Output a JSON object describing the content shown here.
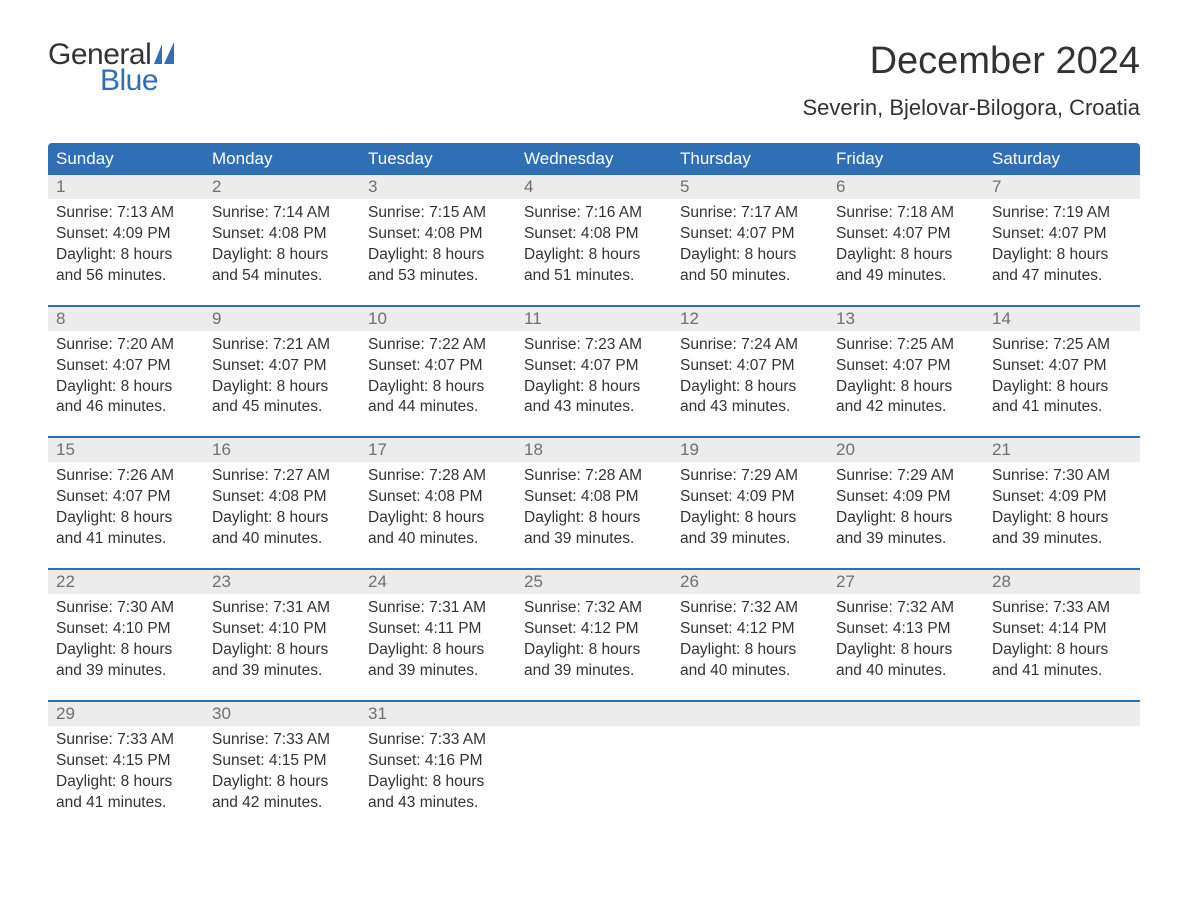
{
  "logo": {
    "text1": "General",
    "text2": "Blue",
    "text1_color": "#333333",
    "text2_color": "#2f6fb5",
    "sail_color": "#2f6fb5"
  },
  "title": "December 2024",
  "location": "Severin, Bjelovar-Bilogora, Croatia",
  "colors": {
    "header_bg": "#2f6fb5",
    "header_text": "#ffffff",
    "daynum_bg": "#ececec",
    "daynum_text": "#707070",
    "body_text": "#333333",
    "background": "#ffffff",
    "week_separator": "#2f6fb5"
  },
  "typography": {
    "title_fontsize": 38,
    "location_fontsize": 22,
    "weekday_fontsize": 17,
    "daynum_fontsize": 17,
    "details_fontsize": 15.5,
    "font_family": "Arial"
  },
  "weekdays": [
    "Sunday",
    "Monday",
    "Tuesday",
    "Wednesday",
    "Thursday",
    "Friday",
    "Saturday"
  ],
  "weeks": [
    [
      {
        "n": "1",
        "sr": "Sunrise: 7:13 AM",
        "ss": "Sunset: 4:09 PM",
        "d1": "Daylight: 8 hours",
        "d2": "and 56 minutes."
      },
      {
        "n": "2",
        "sr": "Sunrise: 7:14 AM",
        "ss": "Sunset: 4:08 PM",
        "d1": "Daylight: 8 hours",
        "d2": "and 54 minutes."
      },
      {
        "n": "3",
        "sr": "Sunrise: 7:15 AM",
        "ss": "Sunset: 4:08 PM",
        "d1": "Daylight: 8 hours",
        "d2": "and 53 minutes."
      },
      {
        "n": "4",
        "sr": "Sunrise: 7:16 AM",
        "ss": "Sunset: 4:08 PM",
        "d1": "Daylight: 8 hours",
        "d2": "and 51 minutes."
      },
      {
        "n": "5",
        "sr": "Sunrise: 7:17 AM",
        "ss": "Sunset: 4:07 PM",
        "d1": "Daylight: 8 hours",
        "d2": "and 50 minutes."
      },
      {
        "n": "6",
        "sr": "Sunrise: 7:18 AM",
        "ss": "Sunset: 4:07 PM",
        "d1": "Daylight: 8 hours",
        "d2": "and 49 minutes."
      },
      {
        "n": "7",
        "sr": "Sunrise: 7:19 AM",
        "ss": "Sunset: 4:07 PM",
        "d1": "Daylight: 8 hours",
        "d2": "and 47 minutes."
      }
    ],
    [
      {
        "n": "8",
        "sr": "Sunrise: 7:20 AM",
        "ss": "Sunset: 4:07 PM",
        "d1": "Daylight: 8 hours",
        "d2": "and 46 minutes."
      },
      {
        "n": "9",
        "sr": "Sunrise: 7:21 AM",
        "ss": "Sunset: 4:07 PM",
        "d1": "Daylight: 8 hours",
        "d2": "and 45 minutes."
      },
      {
        "n": "10",
        "sr": "Sunrise: 7:22 AM",
        "ss": "Sunset: 4:07 PM",
        "d1": "Daylight: 8 hours",
        "d2": "and 44 minutes."
      },
      {
        "n": "11",
        "sr": "Sunrise: 7:23 AM",
        "ss": "Sunset: 4:07 PM",
        "d1": "Daylight: 8 hours",
        "d2": "and 43 minutes."
      },
      {
        "n": "12",
        "sr": "Sunrise: 7:24 AM",
        "ss": "Sunset: 4:07 PM",
        "d1": "Daylight: 8 hours",
        "d2": "and 43 minutes."
      },
      {
        "n": "13",
        "sr": "Sunrise: 7:25 AM",
        "ss": "Sunset: 4:07 PM",
        "d1": "Daylight: 8 hours",
        "d2": "and 42 minutes."
      },
      {
        "n": "14",
        "sr": "Sunrise: 7:25 AM",
        "ss": "Sunset: 4:07 PM",
        "d1": "Daylight: 8 hours",
        "d2": "and 41 minutes."
      }
    ],
    [
      {
        "n": "15",
        "sr": "Sunrise: 7:26 AM",
        "ss": "Sunset: 4:07 PM",
        "d1": "Daylight: 8 hours",
        "d2": "and 41 minutes."
      },
      {
        "n": "16",
        "sr": "Sunrise: 7:27 AM",
        "ss": "Sunset: 4:08 PM",
        "d1": "Daylight: 8 hours",
        "d2": "and 40 minutes."
      },
      {
        "n": "17",
        "sr": "Sunrise: 7:28 AM",
        "ss": "Sunset: 4:08 PM",
        "d1": "Daylight: 8 hours",
        "d2": "and 40 minutes."
      },
      {
        "n": "18",
        "sr": "Sunrise: 7:28 AM",
        "ss": "Sunset: 4:08 PM",
        "d1": "Daylight: 8 hours",
        "d2": "and 39 minutes."
      },
      {
        "n": "19",
        "sr": "Sunrise: 7:29 AM",
        "ss": "Sunset: 4:09 PM",
        "d1": "Daylight: 8 hours",
        "d2": "and 39 minutes."
      },
      {
        "n": "20",
        "sr": "Sunrise: 7:29 AM",
        "ss": "Sunset: 4:09 PM",
        "d1": "Daylight: 8 hours",
        "d2": "and 39 minutes."
      },
      {
        "n": "21",
        "sr": "Sunrise: 7:30 AM",
        "ss": "Sunset: 4:09 PM",
        "d1": "Daylight: 8 hours",
        "d2": "and 39 minutes."
      }
    ],
    [
      {
        "n": "22",
        "sr": "Sunrise: 7:30 AM",
        "ss": "Sunset: 4:10 PM",
        "d1": "Daylight: 8 hours",
        "d2": "and 39 minutes."
      },
      {
        "n": "23",
        "sr": "Sunrise: 7:31 AM",
        "ss": "Sunset: 4:10 PM",
        "d1": "Daylight: 8 hours",
        "d2": "and 39 minutes."
      },
      {
        "n": "24",
        "sr": "Sunrise: 7:31 AM",
        "ss": "Sunset: 4:11 PM",
        "d1": "Daylight: 8 hours",
        "d2": "and 39 minutes."
      },
      {
        "n": "25",
        "sr": "Sunrise: 7:32 AM",
        "ss": "Sunset: 4:12 PM",
        "d1": "Daylight: 8 hours",
        "d2": "and 39 minutes."
      },
      {
        "n": "26",
        "sr": "Sunrise: 7:32 AM",
        "ss": "Sunset: 4:12 PM",
        "d1": "Daylight: 8 hours",
        "d2": "and 40 minutes."
      },
      {
        "n": "27",
        "sr": "Sunrise: 7:32 AM",
        "ss": "Sunset: 4:13 PM",
        "d1": "Daylight: 8 hours",
        "d2": "and 40 minutes."
      },
      {
        "n": "28",
        "sr": "Sunrise: 7:33 AM",
        "ss": "Sunset: 4:14 PM",
        "d1": "Daylight: 8 hours",
        "d2": "and 41 minutes."
      }
    ],
    [
      {
        "n": "29",
        "sr": "Sunrise: 7:33 AM",
        "ss": "Sunset: 4:15 PM",
        "d1": "Daylight: 8 hours",
        "d2": "and 41 minutes."
      },
      {
        "n": "30",
        "sr": "Sunrise: 7:33 AM",
        "ss": "Sunset: 4:15 PM",
        "d1": "Daylight: 8 hours",
        "d2": "and 42 minutes."
      },
      {
        "n": "31",
        "sr": "Sunrise: 7:33 AM",
        "ss": "Sunset: 4:16 PM",
        "d1": "Daylight: 8 hours",
        "d2": "and 43 minutes."
      },
      null,
      null,
      null,
      null
    ]
  ]
}
